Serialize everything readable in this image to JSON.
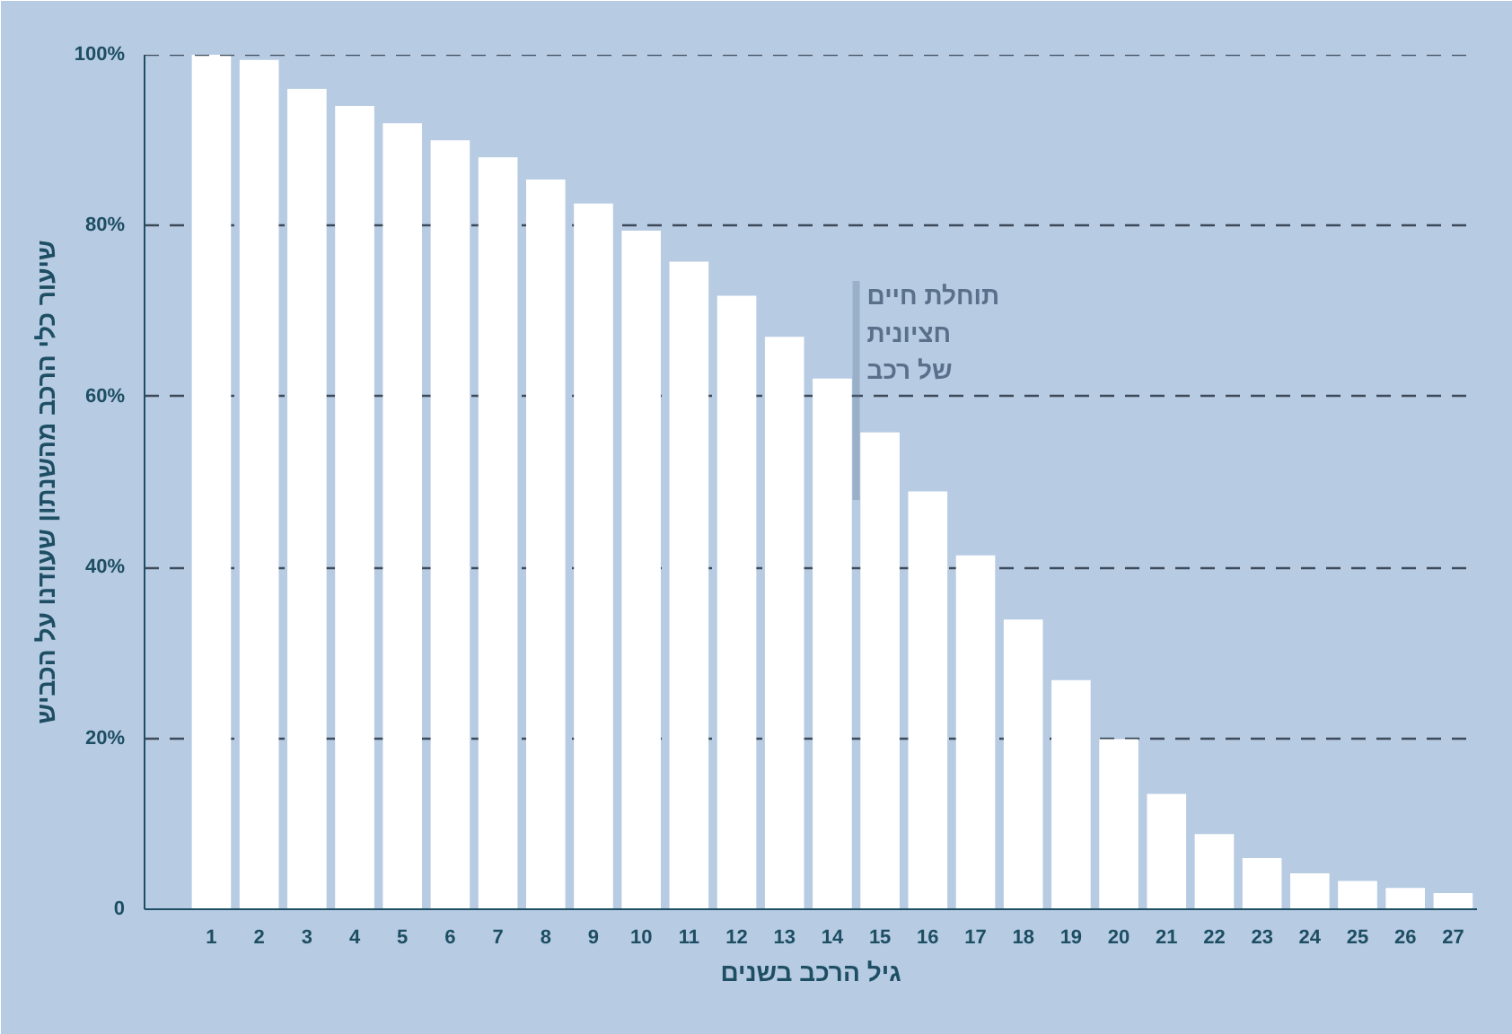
{
  "chart_data": {
    "type": "bar",
    "xlabel": "גיל הרכב בשנים",
    "ylabel": "שיעור כלי הרכב מהשנתון שעודנו על הכביש",
    "x": [
      1,
      2,
      3,
      4,
      5,
      6,
      7,
      8,
      9,
      10,
      11,
      12,
      13,
      14,
      15,
      16,
      17,
      18,
      19,
      20,
      21,
      22,
      23,
      24,
      25,
      26,
      27
    ],
    "values": [
      100,
      99.4,
      96,
      94,
      92,
      90,
      88,
      85.4,
      82.6,
      79.4,
      75.8,
      71.8,
      67,
      62.1,
      55.8,
      48.9,
      41.4,
      33.9,
      26.8,
      19.9,
      13.5,
      8.8,
      6,
      4.2,
      3.3,
      2.5,
      1.9
    ],
    "color": "#ffffff",
    "xlim": [
      -0.4,
      27.5
    ],
    "xticks": [
      1,
      2,
      3,
      4,
      5,
      6,
      7,
      8,
      9,
      10,
      11,
      12,
      13,
      14,
      15,
      16,
      17,
      18,
      19,
      20,
      21,
      22,
      23,
      24,
      25,
      26,
      27
    ],
    "ylim": [
      0,
      100
    ],
    "yticks": [
      {
        "value": 0,
        "label": "0"
      },
      {
        "value": 20,
        "label": "20%"
      },
      {
        "value": 40,
        "label": "40%"
      },
      {
        "value": 60,
        "label": "60%"
      },
      {
        "value": 80,
        "label": "80%"
      },
      {
        "value": 100,
        "label": "100%"
      }
    ],
    "grid": "y",
    "ref_lines": [
      {
        "axis": "x",
        "value": 14.5,
        "label": "תוחלת חיים\nחציונית\nשל רכב",
        "color": "#5a6f8a"
      }
    ]
  }
}
